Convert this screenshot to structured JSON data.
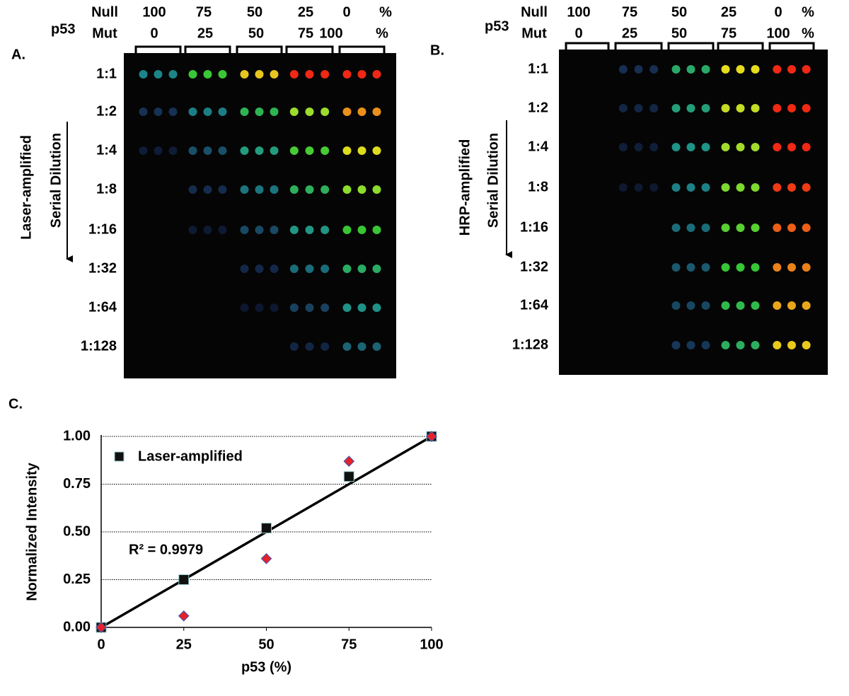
{
  "panel_a": {
    "label": "A.",
    "gene": "p53",
    "row_headers": [
      "Null",
      "Mut"
    ],
    "null_values": [
      "100",
      "75",
      "50",
      "25",
      "0",
      "%"
    ],
    "mut_values": [
      "0",
      "25",
      "50",
      "75",
      "100",
      "%"
    ],
    "method": "Laser-amplified",
    "direction": "Serial Dilution",
    "dilutions": [
      "1:1",
      "1:2",
      "1:4",
      "1:8",
      "1:16",
      "1:32",
      "1:64",
      "1:128"
    ]
  },
  "panel_b": {
    "label": "B.",
    "gene": "p53",
    "row_headers": [
      "Null",
      "Mut"
    ],
    "null_values": [
      "100",
      "75",
      "50",
      "25",
      "0",
      "%"
    ],
    "mut_values": [
      "0",
      "25",
      "50",
      "75",
      "100",
      "%"
    ],
    "method": "HRP-amplified",
    "direction": "Serial Dilution",
    "dilutions": [
      "1:1",
      "1:2",
      "1:4",
      "1:8",
      "1:16",
      "1:32",
      "1:64",
      "1:128"
    ]
  },
  "chart_data": {
    "type": "scatter",
    "label": "C.",
    "x_label": "p53 (%)",
    "y_label": "Normalized Intensity",
    "annotation": "R² = 0.9979",
    "x": [
      0,
      25,
      50,
      75,
      100
    ],
    "series": [
      {
        "name": "Laser-amplified",
        "color": "#111111",
        "values": [
          0,
          0.25,
          0.52,
          0.79,
          1.0
        ]
      },
      {
        "color": "#e8202a",
        "values": [
          0,
          0.06,
          0.36,
          0.87,
          1.0
        ]
      }
    ],
    "xlim": [
      0,
      100
    ],
    "xticks": [
      0,
      25,
      50,
      75,
      100
    ],
    "ylim": [
      0,
      1
    ],
    "yticks": [
      {
        "value": 0,
        "label": "0.00"
      },
      {
        "value": 0.25,
        "label": "0.25"
      },
      {
        "value": 0.5,
        "label": "0.50"
      },
      {
        "value": 0.75,
        "label": "0.75"
      },
      {
        "value": 1,
        "label": "1.00"
      }
    ],
    "grid": true
  }
}
